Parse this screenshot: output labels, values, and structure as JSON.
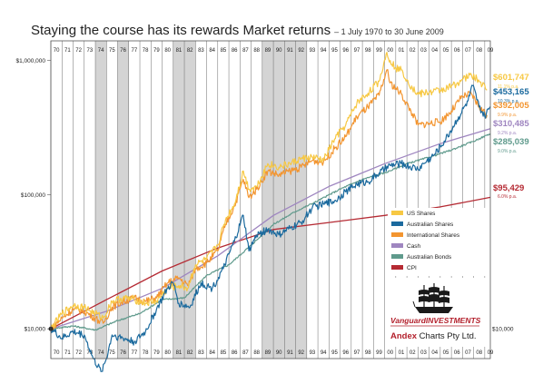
{
  "chart_data": {
    "type": "line",
    "title": "Staying the course has its rewards Market returns",
    "subtitle": "– 1 July 1970 to 30 June 2009",
    "y_scale": "log",
    "ylim": [
      6000,
      1400000
    ],
    "xlim": [
      1970.0,
      2009.5
    ],
    "y_ticks": [
      {
        "value": 1000000,
        "label": "$1,000,000"
      },
      {
        "value": 100000,
        "label": "$100,000"
      },
      {
        "value": 10000,
        "label": "$10,000"
      }
    ],
    "right_tick": {
      "value": 10000,
      "label": "$10,000"
    },
    "year_labels": [
      "70",
      "71",
      "72",
      "73",
      "74",
      "75",
      "76",
      "77",
      "78",
      "79",
      "80",
      "81",
      "82",
      "83",
      "84",
      "85",
      "86",
      "87",
      "88",
      "89",
      "90",
      "91",
      "92",
      "93",
      "94",
      "95",
      "96",
      "97",
      "98",
      "99",
      "00",
      "01",
      "02",
      "03",
      "04",
      "05",
      "06",
      "07",
      "08",
      "09"
    ],
    "shaded_periods": [
      [
        1974,
        1975
      ],
      [
        1976,
        1977
      ],
      [
        1981,
        1983
      ],
      [
        1989,
        1993
      ]
    ],
    "start_value": 10000,
    "series": [
      {
        "name": "US Shares",
        "color": "#f7c843",
        "end_value": "$601,747",
        "rate": "11.1% p.a.",
        "x": [
          1970.0,
          1971.0,
          1972.0,
          1973.0,
          1974.0,
          1974.7,
          1975.5,
          1976.5,
          1977.5,
          1978.5,
          1979.5,
          1980.5,
          1981.5,
          1982.3,
          1983.0,
          1984.0,
          1985.0,
          1985.7,
          1986.5,
          1987.3,
          1987.8,
          1988.5,
          1989.5,
          1990.5,
          1991.5,
          1992.5,
          1993.5,
          1994.5,
          1995.5,
          1996.5,
          1997.5,
          1998.5,
          1999.5,
          2000.2,
          2000.5,
          2001.0,
          2001.5,
          2002.5,
          2003.0,
          2004.0,
          2005.0,
          2006.0,
          2007.0,
          2007.8,
          2008.5,
          2009.2
        ],
        "values": [
          10000,
          13000,
          15000,
          14500,
          13000,
          12000,
          16000,
          17000,
          16500,
          15500,
          16000,
          20000,
          21000,
          20000,
          30000,
          33000,
          42000,
          65000,
          85000,
          150000,
          110000,
          115000,
          170000,
          160000,
          170000,
          185000,
          190000,
          180000,
          260000,
          330000,
          480000,
          570000,
          700000,
          1150000,
          1000000,
          880000,
          850000,
          620000,
          560000,
          580000,
          600000,
          640000,
          720000,
          780000,
          700000,
          601747
        ]
      },
      {
        "name": "Australian Shares",
        "color": "#1b6a9e",
        "end_value": "$453,165",
        "rate": "10.3% p.a.",
        "x": [
          1970.0,
          1971.0,
          1972.0,
          1973.0,
          1973.8,
          1974.5,
          1975.0,
          1975.5,
          1976.5,
          1977.5,
          1978.5,
          1979.5,
          1980.5,
          1981.0,
          1981.5,
          1982.5,
          1983.5,
          1984.5,
          1985.5,
          1986.5,
          1987.3,
          1987.8,
          1988.5,
          1989.5,
          1990.5,
          1991.5,
          1992.5,
          1993.5,
          1994.5,
          1995.5,
          1996.5,
          1997.5,
          1998.5,
          1999.5,
          2000.5,
          2001.5,
          2002.5,
          2003.0,
          2003.5,
          2004.5,
          2005.5,
          2006.5,
          2007.5,
          2007.9,
          2008.5,
          2009.0,
          2009.5
        ],
        "values": [
          10000,
          8500,
          9500,
          9000,
          6000,
          4800,
          6000,
          9000,
          8500,
          8000,
          9500,
          14000,
          20000,
          22000,
          15500,
          14500,
          22000,
          20000,
          28000,
          45000,
          70000,
          38000,
          50000,
          55000,
          50000,
          56000,
          62000,
          80000,
          85000,
          90000,
          105000,
          120000,
          125000,
          145000,
          165000,
          170000,
          160000,
          155000,
          170000,
          200000,
          260000,
          360000,
          500000,
          650000,
          450000,
          380000,
          453165
        ]
      },
      {
        "name": "International Shares",
        "color": "#f39530",
        "end_value": "$392,005",
        "rate": "9.9% p.a.",
        "x": [
          1970.0,
          1971.0,
          1972.0,
          1973.0,
          1974.0,
          1974.7,
          1975.5,
          1976.5,
          1977.5,
          1978.5,
          1979.5,
          1980.5,
          1981.5,
          1982.3,
          1983.0,
          1984.0,
          1985.0,
          1985.7,
          1986.5,
          1987.3,
          1987.8,
          1988.5,
          1989.5,
          1990.5,
          1991.5,
          1992.5,
          1993.5,
          1994.5,
          1995.5,
          1996.5,
          1997.5,
          1998.5,
          1999.5,
          2000.2,
          2000.5,
          2001.0,
          2001.5,
          2002.5,
          2003.0,
          2004.0,
          2005.0,
          2006.0,
          2007.0,
          2007.8,
          2008.5,
          2009.2
        ],
        "values": [
          10000,
          12000,
          14000,
          13500,
          12000,
          11000,
          14500,
          16000,
          17000,
          16000,
          17000,
          22000,
          24000,
          21000,
          28000,
          31000,
          38000,
          60000,
          82000,
          130000,
          95000,
          110000,
          150000,
          140000,
          150000,
          160000,
          180000,
          175000,
          220000,
          270000,
          380000,
          450000,
          550000,
          850000,
          680000,
          620000,
          560000,
          400000,
          330000,
          340000,
          350000,
          420000,
          540000,
          560000,
          450000,
          392005
        ]
      },
      {
        "name": "Cash",
        "color": "#9f86c0",
        "end_value": "$310,485",
        "rate": "9.2% p.a.",
        "x": [
          1970.0,
          1975.0,
          1980.0,
          1985.0,
          1990.0,
          1995.0,
          2000.0,
          2005.0,
          2009.5
        ],
        "values": [
          10000,
          13500,
          20000,
          35000,
          70000,
          115000,
          170000,
          240000,
          310485
        ]
      },
      {
        "name": "Australian Bonds",
        "color": "#5f9a8c",
        "end_value": "$285,039",
        "rate": "9.0% p.a.",
        "x": [
          1970.0,
          1972.0,
          1974.0,
          1976.0,
          1978.0,
          1980.0,
          1982.0,
          1984.0,
          1986.0,
          1988.0,
          1990.0,
          1992.0,
          1994.0,
          1996.0,
          1998.0,
          2000.0,
          2002.0,
          2004.0,
          2006.0,
          2008.0,
          2009.5
        ],
        "values": [
          10000,
          10500,
          9800,
          11500,
          13000,
          16500,
          17000,
          25000,
          30000,
          42000,
          60000,
          75000,
          90000,
          110000,
          130000,
          145000,
          170000,
          190000,
          215000,
          250000,
          285039
        ]
      },
      {
        "name": "CPI",
        "color": "#b52a33",
        "end_value": "$95,429",
        "rate": "6.0% p.a.",
        "x": [
          1970.0,
          1975.0,
          1980.0,
          1985.0,
          1990.0,
          1995.0,
          2000.0,
          2005.0,
          2009.5
        ],
        "values": [
          10000,
          16500,
          27000,
          40000,
          55000,
          62000,
          70000,
          81000,
          95429
        ]
      }
    ],
    "legend_position": "bottom-right",
    "grid": "vertical year lines"
  },
  "branding": {
    "vanguard_text": "VanguardINVESTMENTS",
    "andex_bold": "Andex",
    "andex_rest": " Charts Pty Ltd."
  }
}
